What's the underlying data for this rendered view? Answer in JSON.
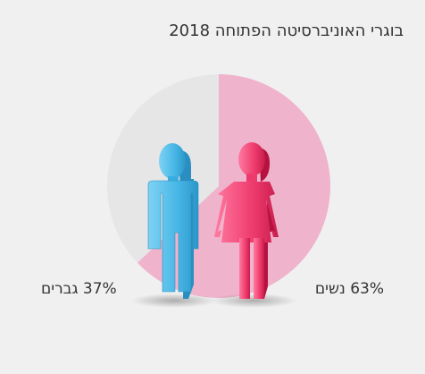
{
  "title": "בוגרי האוניברסיטה הפתוחה 2018",
  "chart_data": {
    "type": "pie",
    "title": "בוגרי האוניברסיטה הפתוחה 2018",
    "slices": [
      {
        "label": "נשים",
        "value": 63,
        "display": "63% נשים",
        "color": "#efb3cc"
      },
      {
        "label": "גברים",
        "value": 37,
        "display": "37% גברים",
        "color": "#e6e6e6"
      }
    ],
    "icons": [
      "woman-figure-icon",
      "man-figure-icon"
    ],
    "colors": {
      "woman_figure": "#e8245c",
      "man_figure": "#3aaee0",
      "background": "#f0f0f0"
    }
  }
}
